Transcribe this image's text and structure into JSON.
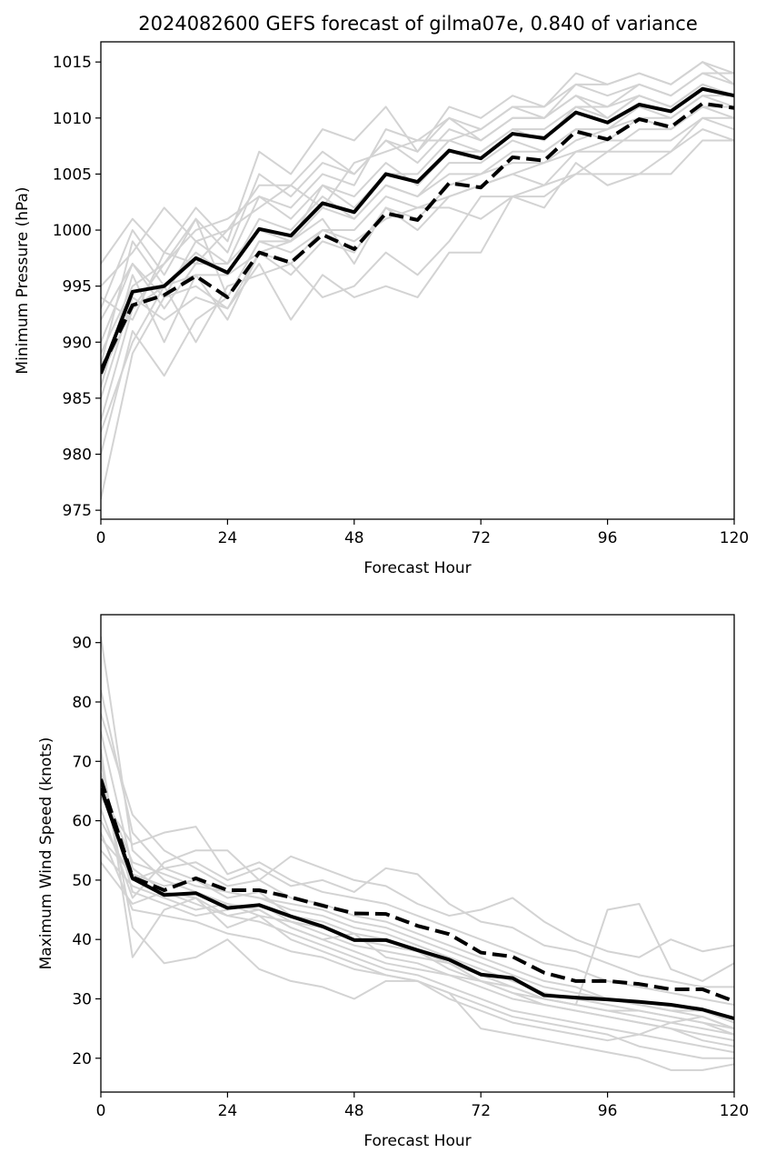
{
  "title": "2024082600 GEFS forecast of gilma07e, 0.840 of variance",
  "colors": {
    "ensemble": "#d3d3d3",
    "mean": "#000000",
    "dashed": "#000000"
  },
  "chart_data": [
    {
      "type": "line",
      "xlabel": "Forecast Hour",
      "ylabel": "Minimum Pressure (hPa)",
      "xlim": [
        0,
        120
      ],
      "ylim": [
        974.2,
        1016.8
      ],
      "xticks": [
        0,
        24,
        48,
        72,
        96,
        120
      ],
      "yticks": [
        975,
        980,
        985,
        990,
        995,
        1000,
        1005,
        1010,
        1015
      ],
      "x": [
        0,
        6,
        12,
        18,
        24,
        30,
        36,
        42,
        48,
        54,
        60,
        66,
        72,
        78,
        84,
        90,
        96,
        102,
        108,
        114,
        120
      ],
      "series": [
        {
          "style": "ensemble",
          "values": [
            976,
            989,
            994,
            995,
            993,
            997,
            992,
            996,
            994,
            995,
            994,
            998,
            998,
            1003,
            1003,
            1005,
            1005,
            1005,
            1005,
            1008,
            1008
          ]
        },
        {
          "style": "ensemble",
          "values": [
            980,
            991,
            987,
            992,
            994,
            999,
            998,
            1000,
            1000,
            1003,
            1002,
            1002,
            1001,
            1003,
            1002,
            1006,
            1004,
            1005,
            1007,
            1009,
            1008
          ]
        },
        {
          "style": "ensemble",
          "values": [
            983,
            993,
            995,
            990,
            995,
            996,
            997,
            994,
            995,
            998,
            996,
            999,
            1003,
            1003,
            1004,
            1005,
            1007,
            1007,
            1007,
            1010,
            1010
          ]
        },
        {
          "style": "ensemble",
          "values": [
            985,
            994,
            992,
            994,
            993,
            998,
            999,
            1001,
            997,
            1002,
            1000,
            1003,
            1004,
            1005,
            1006,
            1007,
            1007,
            1009,
            1009,
            1011,
            1010
          ]
        },
        {
          "style": "ensemble",
          "values": [
            986,
            996,
            990,
            996,
            992,
            998,
            996,
            999,
            998,
            1002,
            1001,
            1004,
            1005,
            1006,
            1006,
            1008,
            1009,
            1010,
            1010,
            1012,
            1011
          ]
        },
        {
          "style": "ensemble",
          "values": [
            988,
            999,
            995,
            998,
            996,
            1001,
            1000,
            1003,
            1001,
            1004,
            1003,
            1006,
            1006,
            1008,
            1007,
            1009,
            1009,
            1011,
            1010,
            1012,
            1012
          ]
        },
        {
          "style": "ensemble",
          "values": [
            990,
            997,
            993,
            997,
            997,
            1003,
            1001,
            1004,
            1003,
            1006,
            1004,
            1007,
            1007,
            1009,
            1008,
            1011,
            1010,
            1012,
            1011,
            1013,
            1012
          ]
        },
        {
          "style": "ensemble",
          "values": [
            993,
            1000,
            996,
            1001,
            998,
            1005,
            1003,
            1006,
            1005,
            1008,
            1006,
            1009,
            1008,
            1010,
            1010,
            1012,
            1011,
            1013,
            1012,
            1014,
            1013
          ]
        },
        {
          "style": "ensemble",
          "values": [
            995,
            998,
            1002,
            999,
            1000,
            1002,
            1004,
            1002,
            1006,
            1007,
            1008,
            1008,
            1009,
            1011,
            1010,
            1013,
            1012,
            1013,
            1012,
            1014,
            1014
          ]
        },
        {
          "style": "ensemble",
          "values": [
            997,
            1001,
            998,
            1002,
            999,
            1007,
            1005,
            1009,
            1008,
            1011,
            1007,
            1011,
            1010,
            1012,
            1011,
            1014,
            1013,
            1014,
            1013,
            1015,
            1014
          ]
        },
        {
          "style": "ensemble",
          "values": [
            989,
            995,
            997,
            1000,
            1001,
            1003,
            1002,
            1005,
            1004,
            1009,
            1008,
            1010,
            1009,
            1011,
            1011,
            1013,
            1013,
            1014,
            1013,
            1015,
            1013
          ]
        },
        {
          "style": "ensemble",
          "values": [
            992,
            997,
            994,
            999,
            997,
            1000,
            999,
            1004,
            1002,
            1005,
            1005,
            1008,
            1007,
            1009,
            1009,
            1011,
            1011,
            1012,
            1011,
            1013,
            1012
          ]
        },
        {
          "style": "ensemble",
          "values": [
            994,
            992,
            998,
            997,
            1000,
            1004,
            1004,
            1007,
            1005,
            1008,
            1007,
            1010,
            1008,
            1010,
            1010,
            1012,
            1010,
            1012,
            1011,
            1013,
            1012
          ]
        },
        {
          "style": "ensemble",
          "values": [
            987,
            993,
            997,
            1001,
            994,
            999,
            999,
            1002,
            1001,
            1004,
            1003,
            1005,
            1005,
            1007,
            1007,
            1009,
            1008,
            1010,
            1009,
            1011,
            1011
          ]
        },
        {
          "style": "ensemble",
          "values": [
            982,
            990,
            995,
            996,
            996,
            998,
            997,
            1000,
            999,
            1001,
            1002,
            1003,
            1004,
            1005,
            1004,
            1007,
            1008,
            1008,
            1008,
            1010,
            1009
          ]
        },
        {
          "style": "mean",
          "values": [
            987.2,
            994.5,
            995.0,
            997.5,
            996.2,
            1000.1,
            999.5,
            1002.4,
            1001.6,
            1005.0,
            1004.3,
            1007.1,
            1006.4,
            1008.6,
            1008.2,
            1010.5,
            1009.6,
            1011.2,
            1010.6,
            1012.6,
            1012.0
          ]
        },
        {
          "style": "dashed",
          "values": [
            987.5,
            993.3,
            994.2,
            995.9,
            994.0,
            998.0,
            997.1,
            999.6,
            998.3,
            1001.5,
            1000.9,
            1004.2,
            1003.8,
            1006.5,
            1006.2,
            1008.8,
            1008.1,
            1009.9,
            1009.2,
            1011.3,
            1010.9
          ]
        }
      ]
    },
    {
      "type": "line",
      "xlabel": "Forecast Hour",
      "ylabel": "Maximum Wind Speed (knots)",
      "xlim": [
        0,
        120
      ],
      "ylim": [
        14.3,
        94.7
      ],
      "xticks": [
        0,
        24,
        48,
        72,
        96,
        120
      ],
      "yticks": [
        20,
        30,
        40,
        50,
        60,
        70,
        80,
        90
      ],
      "x": [
        0,
        6,
        12,
        18,
        24,
        30,
        36,
        42,
        48,
        54,
        60,
        66,
        72,
        78,
        84,
        90,
        96,
        102,
        108,
        114,
        120
      ],
      "series": [
        {
          "style": "ensemble",
          "values": [
            91,
            55,
            50,
            48,
            46,
            45,
            42,
            40,
            38,
            36,
            35,
            34,
            32,
            30,
            29,
            28,
            27,
            26,
            25,
            24,
            23
          ]
        },
        {
          "style": "ensemble",
          "values": [
            82,
            58,
            52,
            50,
            47,
            48,
            44,
            43,
            41,
            40,
            38,
            36,
            33,
            32,
            30,
            29,
            28,
            28,
            27,
            26,
            24
          ]
        },
        {
          "style": "ensemble",
          "values": [
            78,
            61,
            55,
            52,
            49,
            50,
            47,
            46,
            44,
            43,
            41,
            39,
            37,
            35,
            33,
            32,
            30,
            29,
            28,
            27,
            25
          ]
        },
        {
          "style": "ensemble",
          "values": [
            75,
            52,
            48,
            46,
            44,
            43,
            41,
            39,
            37,
            35,
            34,
            32,
            30,
            28,
            27,
            26,
            25,
            24,
            23,
            22,
            21
          ]
        },
        {
          "style": "ensemble",
          "values": [
            72,
            37,
            45,
            47,
            42,
            44,
            40,
            38,
            36,
            34,
            33,
            31,
            29,
            27,
            26,
            25,
            24,
            22,
            21,
            20,
            20
          ]
        },
        {
          "style": "ensemble",
          "values": [
            70,
            42,
            36,
            37,
            40,
            35,
            33,
            32,
            30,
            33,
            33,
            31,
            25,
            24,
            23,
            22,
            21,
            20,
            18,
            18,
            19
          ]
        },
        {
          "style": "ensemble",
          "values": [
            68,
            48,
            46,
            44,
            45,
            46,
            43,
            42,
            40,
            39,
            38,
            35,
            33,
            31,
            30,
            29,
            45,
            46,
            35,
            33,
            36
          ]
        },
        {
          "style": "ensemble",
          "values": [
            66,
            53,
            51,
            49,
            48,
            47,
            46,
            45,
            43,
            42,
            40,
            38,
            36,
            34,
            32,
            31,
            30,
            29,
            28,
            28,
            26
          ]
        },
        {
          "style": "ensemble",
          "values": [
            64,
            56,
            58,
            59,
            51,
            53,
            50,
            48,
            47,
            46,
            44,
            42,
            40,
            38,
            36,
            35,
            33,
            32,
            31,
            30,
            29
          ]
        },
        {
          "style": "ensemble",
          "values": [
            62,
            47,
            53,
            55,
            55,
            50,
            54,
            52,
            50,
            49,
            46,
            44,
            45,
            47,
            43,
            40,
            38,
            37,
            40,
            38,
            39
          ]
        },
        {
          "style": "ensemble",
          "values": [
            60,
            50,
            52,
            53,
            50,
            52,
            49,
            50,
            48,
            52,
            51,
            46,
            43,
            42,
            39,
            38,
            36,
            34,
            33,
            32,
            32
          ]
        },
        {
          "style": "ensemble",
          "values": [
            58,
            45,
            44,
            43,
            41,
            40,
            38,
            37,
            35,
            34,
            33,
            30,
            28,
            26,
            25,
            24,
            23,
            24,
            26,
            27,
            25
          ]
        },
        {
          "style": "ensemble",
          "values": [
            57,
            51,
            49,
            50,
            48,
            47,
            45,
            44,
            42,
            41,
            39,
            37,
            35,
            33,
            31,
            30,
            29,
            28,
            27,
            26,
            25
          ]
        },
        {
          "style": "ensemble",
          "values": [
            55,
            49,
            47,
            45,
            46,
            44,
            43,
            41,
            39,
            38,
            37,
            36,
            34,
            32,
            30,
            29,
            28,
            27,
            26,
            25,
            24
          ]
        },
        {
          "style": "ensemble",
          "values": [
            53,
            46,
            48,
            47,
            44,
            45,
            42,
            40,
            41,
            37,
            36,
            34,
            33,
            31,
            29,
            28,
            27,
            26,
            25,
            23,
            22
          ]
        },
        {
          "style": "mean",
          "values": [
            65.5,
            50.3,
            47.5,
            47.8,
            45.3,
            45.8,
            43.9,
            42.2,
            39.9,
            39.9,
            38.2,
            36.6,
            34.1,
            33.5,
            30.6,
            30.2,
            29.9,
            29.5,
            29.0,
            28.2,
            26.7
          ]
        },
        {
          "style": "dashed",
          "values": [
            67.0,
            50.5,
            48.3,
            50.3,
            48.3,
            48.3,
            47.1,
            45.7,
            44.4,
            44.3,
            42.3,
            40.9,
            37.8,
            37.1,
            34.4,
            33.0,
            33.0,
            32.5,
            31.6,
            31.6,
            29.6
          ]
        }
      ]
    }
  ]
}
